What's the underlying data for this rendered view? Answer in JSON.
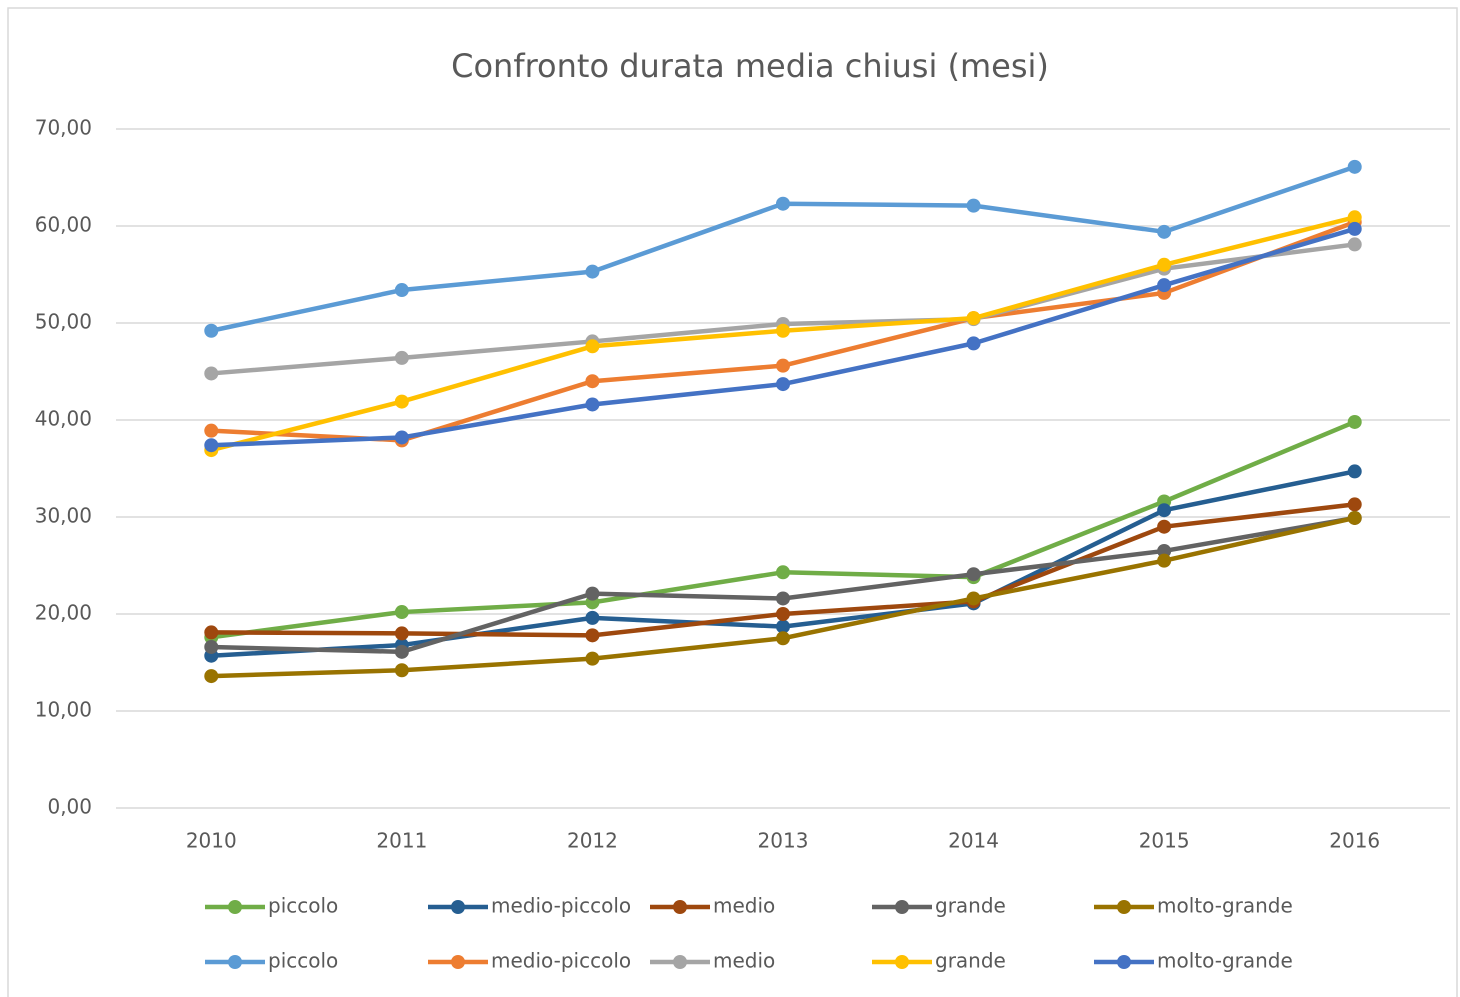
{
  "chart_data": {
    "type": "line",
    "title": "Confronto durata media chiusi (mesi)",
    "categories": [
      "2010",
      "2011",
      "2012",
      "2013",
      "2014",
      "2015",
      "2016"
    ],
    "ylim": [
      0,
      70
    ],
    "yticks": [
      {
        "value": 0,
        "label": "0,00"
      },
      {
        "value": 10,
        "label": "10,00"
      },
      {
        "value": 20,
        "label": "20,00"
      },
      {
        "value": 30,
        "label": "30,00"
      },
      {
        "value": 40,
        "label": "40,00"
      },
      {
        "value": 50,
        "label": "50,00"
      },
      {
        "value": 60,
        "label": "60,00"
      },
      {
        "value": 70,
        "label": "70,00"
      }
    ],
    "grid": true,
    "legend": "bottom",
    "series": [
      {
        "name": "piccolo",
        "color": "#70ad47",
        "values": [
          17.6,
          20.2,
          21.2,
          24.3,
          23.8,
          31.6,
          39.8
        ]
      },
      {
        "name": "medio-piccolo",
        "color": "#255e91",
        "values": [
          15.7,
          16.8,
          19.6,
          18.7,
          21.1,
          30.7,
          34.7
        ]
      },
      {
        "name": "medio",
        "color": "#9e480e",
        "values": [
          18.1,
          18.0,
          17.8,
          20.0,
          21.3,
          29.0,
          31.3
        ]
      },
      {
        "name": "grande",
        "color": "#636363",
        "values": [
          16.6,
          16.1,
          22.1,
          21.6,
          24.1,
          26.5,
          29.9
        ]
      },
      {
        "name": "molto-grande",
        "color": "#997300",
        "values": [
          13.6,
          14.2,
          15.4,
          17.5,
          21.6,
          25.5,
          29.9
        ]
      },
      {
        "name": "piccolo",
        "color": "#5b9bd5",
        "values": [
          49.2,
          53.4,
          55.3,
          62.3,
          62.1,
          59.4,
          66.1
        ]
      },
      {
        "name": "medio-piccolo",
        "color": "#ed7d31",
        "values": [
          38.9,
          37.9,
          44.0,
          45.6,
          50.5,
          53.1,
          60.4
        ]
      },
      {
        "name": "medio",
        "color": "#a5a5a5",
        "values": [
          44.8,
          46.4,
          48.1,
          49.9,
          50.4,
          55.6,
          58.1
        ]
      },
      {
        "name": "grande",
        "color": "#ffc000",
        "values": [
          36.9,
          41.9,
          47.6,
          49.2,
          50.5,
          56.0,
          60.9
        ]
      },
      {
        "name": "molto-grande",
        "color": "#4472c4",
        "values": [
          37.4,
          38.2,
          41.6,
          43.7,
          47.9,
          53.9,
          59.7
        ]
      }
    ]
  }
}
